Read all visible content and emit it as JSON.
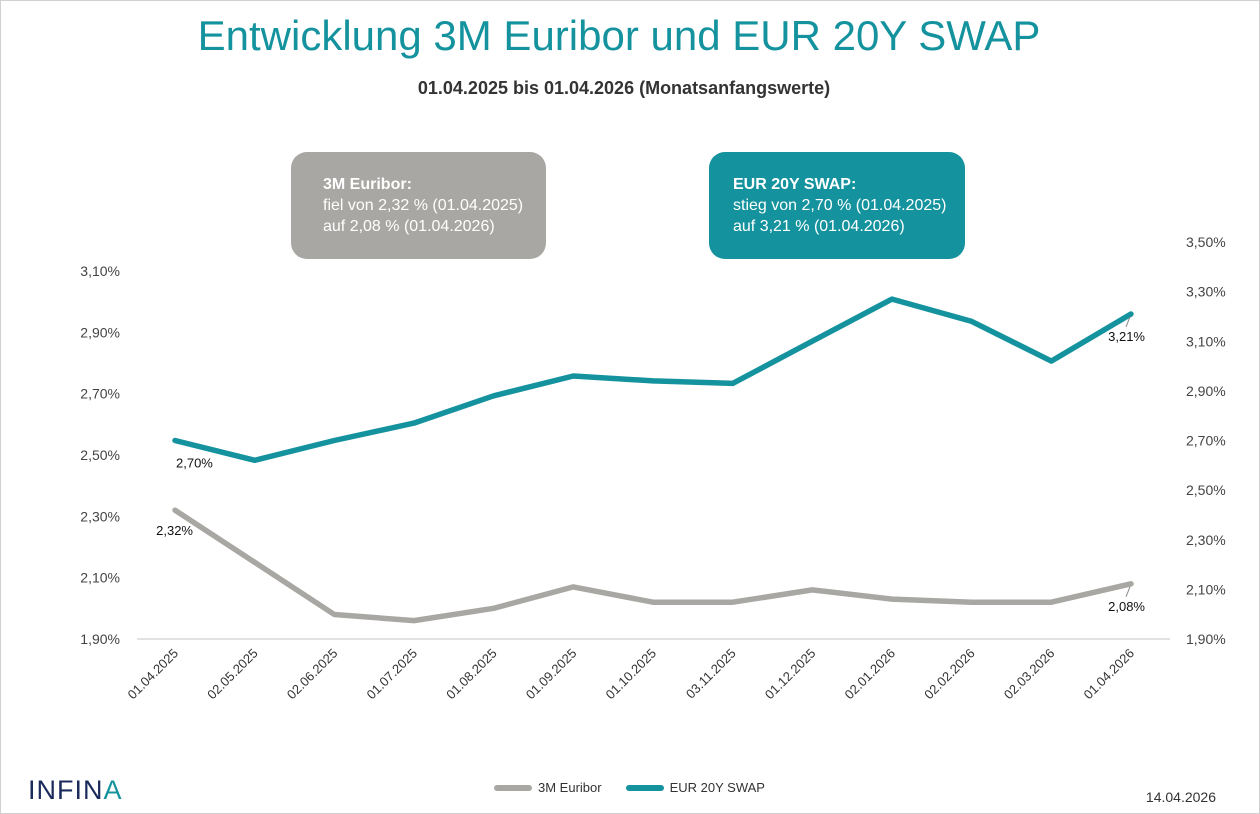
{
  "header": {
    "title": "Entwicklung 3M Euribor und EUR 20Y SWAP",
    "subtitle": "01.04.2025 bis 01.04.2026 (Monatsanfangswerte)"
  },
  "callouts": {
    "euribor": {
      "head": "3M Euribor:",
      "line1": "fiel von 2,32 % (01.04.2025)",
      "line2": "auf 2,08 % (01.04.2026)",
      "color": "#a8a7a3"
    },
    "swap": {
      "head": "EUR 20Y SWAP:",
      "line1": "stieg von 2,70 % (01.04.2025)",
      "line2": "auf 3,21 % (01.04.2026)",
      "color": "#14939e"
    }
  },
  "footer": {
    "logo_text": "INFIN",
    "logo_accent": "A",
    "date": "14.04.2026"
  },
  "chart_data": {
    "type": "line",
    "title": "Entwicklung 3M Euribor und EUR 20Y SWAP",
    "subtitle": "01.04.2025 bis 01.04.2026 (Monatsanfangswerte)",
    "categories": [
      "01.04.2025",
      "02.05.2025",
      "02.06.2025",
      "01.07.2025",
      "01.08.2025",
      "01.09.2025",
      "01.10.2025",
      "03.11.2025",
      "01.12.2025",
      "02.01.2026",
      "02.02.2026",
      "02.03.2026",
      "01.04.2026"
    ],
    "left_axis": {
      "min": 1.9,
      "max": 3.1,
      "step": 0.2,
      "ticks": [
        "1,90%",
        "2,10%",
        "2,30%",
        "2,50%",
        "2,70%",
        "2,90%",
        "3,10%"
      ]
    },
    "right_axis": {
      "min": 1.9,
      "max": 3.5,
      "step": 0.2,
      "ticks": [
        "1,90%",
        "2,10%",
        "2,30%",
        "2,50%",
        "2,70%",
        "2,90%",
        "3,10%",
        "3,30%",
        "3,50%"
      ]
    },
    "series": [
      {
        "name": "3M Euribor",
        "axis": "left",
        "color": "#a8a7a3",
        "values": [
          2.32,
          2.15,
          1.98,
          1.96,
          2.0,
          2.07,
          2.02,
          2.02,
          2.06,
          2.03,
          2.02,
          2.02,
          2.08
        ],
        "labels": [
          {
            "index": 0,
            "text": "2,32%"
          },
          {
            "index": 12,
            "text": "2,08%"
          }
        ]
      },
      {
        "name": "EUR 20Y SWAP",
        "axis": "right",
        "color": "#14939e",
        "values": [
          2.7,
          2.62,
          2.7,
          2.77,
          2.88,
          2.96,
          2.94,
          2.93,
          3.1,
          3.27,
          3.18,
          3.02,
          3.21
        ],
        "labels": [
          {
            "index": 0,
            "text": "2,70%"
          },
          {
            "index": 12,
            "text": "3,21%"
          }
        ]
      }
    ],
    "grid": false,
    "legend": "bottom-center"
  }
}
